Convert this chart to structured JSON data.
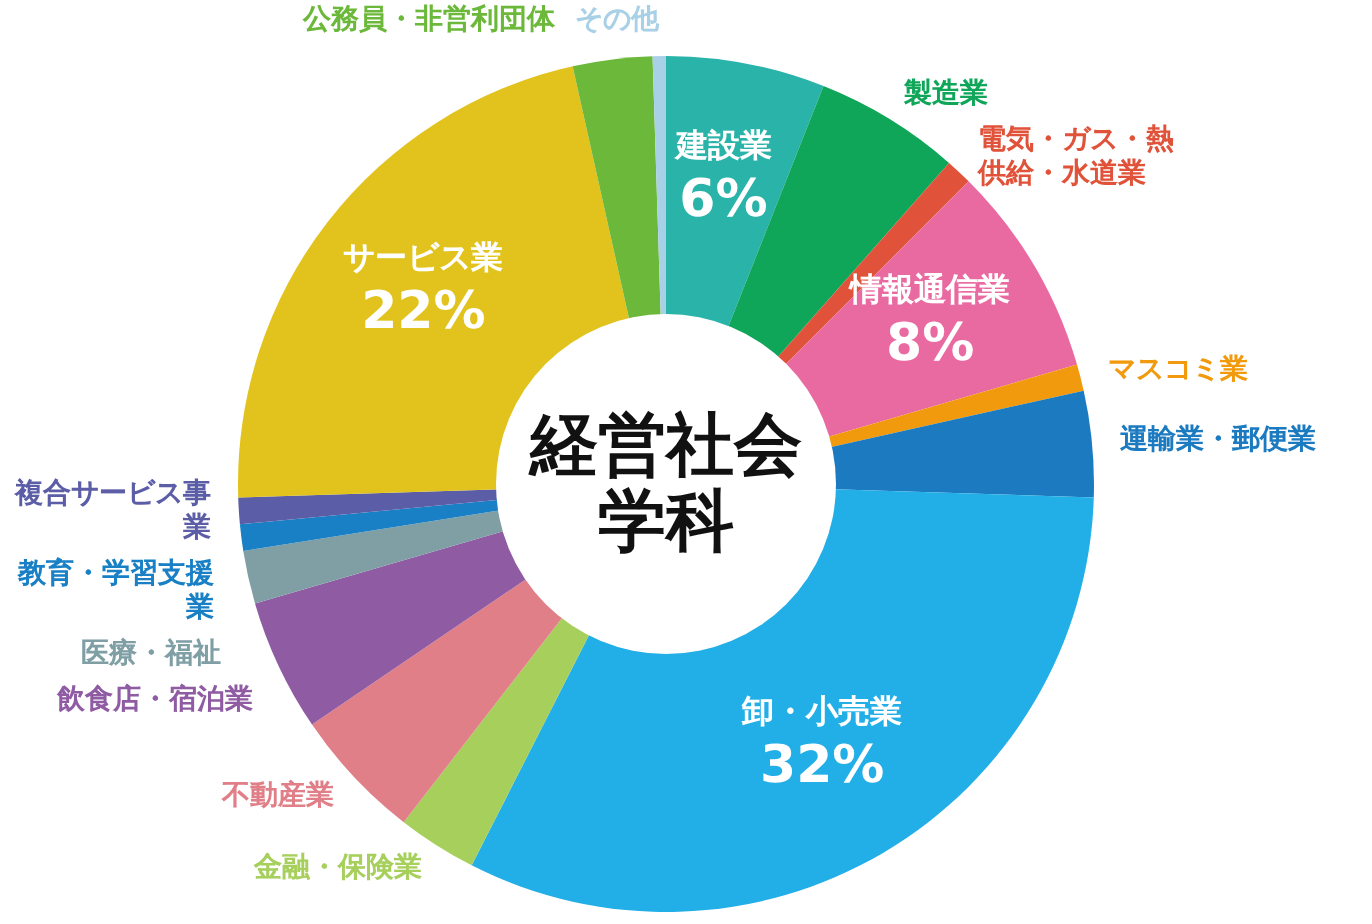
{
  "chart_data": {
    "type": "donut",
    "title": "経営社会学科",
    "categories": [
      "建設業",
      "製造業",
      "電気・ガス・熱供給・水道業",
      "情報通信業",
      "マスコミ業",
      "運輸業・郵便業",
      "卸・小売業",
      "金融・保険業",
      "不動産業",
      "飲食店・宿泊業",
      "医療・福祉",
      "教育・学習支援業",
      "複合サービス事業",
      "サービス業",
      "公務員・非営利団体",
      "その他"
    ],
    "values": [
      6,
      5.5,
      1,
      8,
      1,
      4,
      32,
      3,
      5,
      5,
      2,
      1,
      1,
      22,
      3,
      0.5
    ],
    "colors": [
      "#2ab3a8",
      "#0fa65a",
      "#e0533a",
      "#e96aa0",
      "#f29a0e",
      "#1c7bc0",
      "#22aee6",
      "#a6cf5c",
      "#e07f88",
      "#8f5ca3",
      "#7f9fa5",
      "#1a80c5",
      "#5b5ea6",
      "#e2c31e",
      "#6bb83a",
      "#a8d0e6"
    ],
    "value_labels": [
      "6%",
      null,
      null,
      "8%",
      null,
      null,
      "32%",
      null,
      null,
      null,
      null,
      null,
      null,
      "22%",
      null,
      null
    ]
  }
}
